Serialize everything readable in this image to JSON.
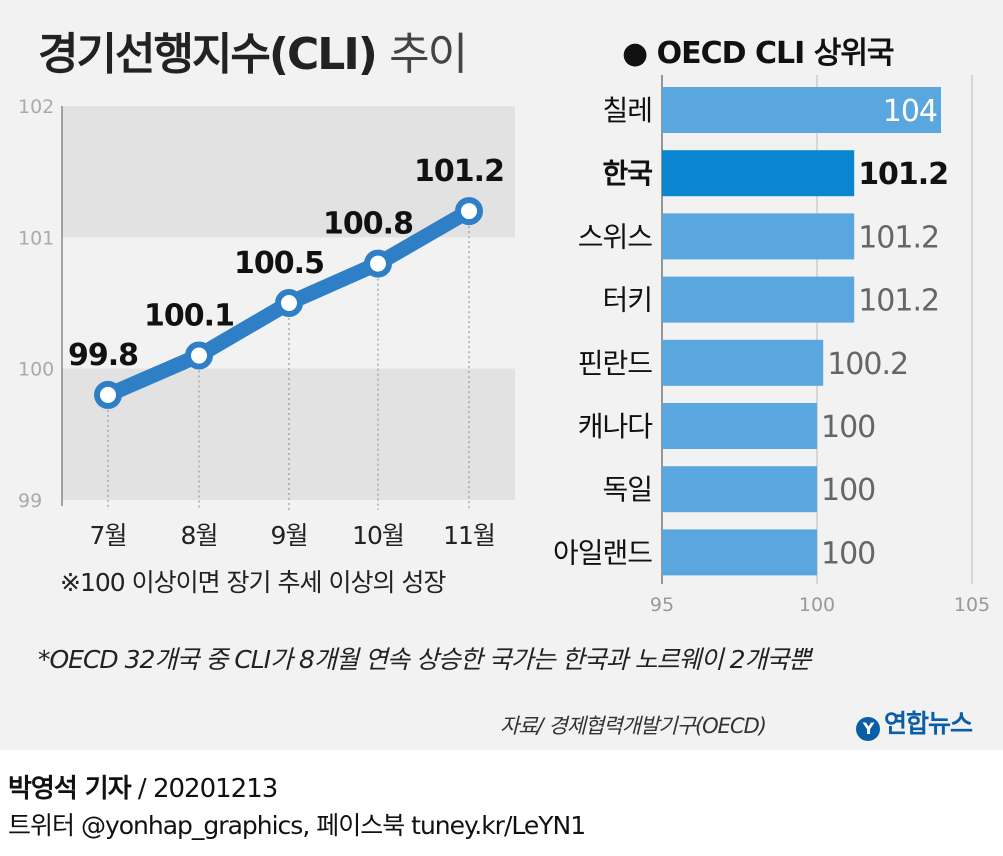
{
  "title": "경기선행지수(CLI)",
  "title_suffix": "추이",
  "right_title": "OECD CLI 상위국",
  "left_note": "※100 이상이면 장기 추세 이상의 성장",
  "footnote": "*OECD 32개국 중 CLI가 8개월 연속 상승한 국가는 한국과 노르웨이 2개국뿐",
  "source": "자료/ 경제협력개발기구(OECD)",
  "brand": "연합뉴스",
  "credit": {
    "author": "박영석 기자",
    "date": "20201213",
    "social": "트위터 @yonhap_graphics, 페이스북 tuney.kr/LeYN1"
  },
  "colors": {
    "line": "#2f7fc6",
    "bar": "#5aa7e0",
    "bar_highlight": "#0a86d1",
    "band": "#e2e2e2"
  },
  "chart_data": [
    {
      "type": "line",
      "categories": [
        "7월",
        "8월",
        "9월",
        "10월",
        "11월"
      ],
      "values": [
        99.8,
        100.1,
        100.5,
        100.8,
        101.2
      ],
      "labels": [
        "99.8",
        "100.1",
        "100.5",
        "100.8",
        "101.2"
      ],
      "ylim": [
        99,
        102
      ],
      "yticks": [
        "99",
        "100",
        "101",
        "102"
      ],
      "grid": false
    },
    {
      "type": "bar",
      "orientation": "horizontal",
      "categories": [
        "칠레",
        "한국",
        "스위스",
        "터키",
        "핀란드",
        "캐나다",
        "독일",
        "아일랜드"
      ],
      "values": [
        104,
        101.2,
        101.2,
        101.2,
        100.2,
        100,
        100,
        100
      ],
      "labels": [
        "104",
        "101.2",
        "101.2",
        "101.2",
        "100.2",
        "100",
        "100",
        "100"
      ],
      "highlight": "한국",
      "xlim": [
        95,
        105
      ],
      "xticks": [
        "95",
        "100",
        "105"
      ]
    }
  ]
}
